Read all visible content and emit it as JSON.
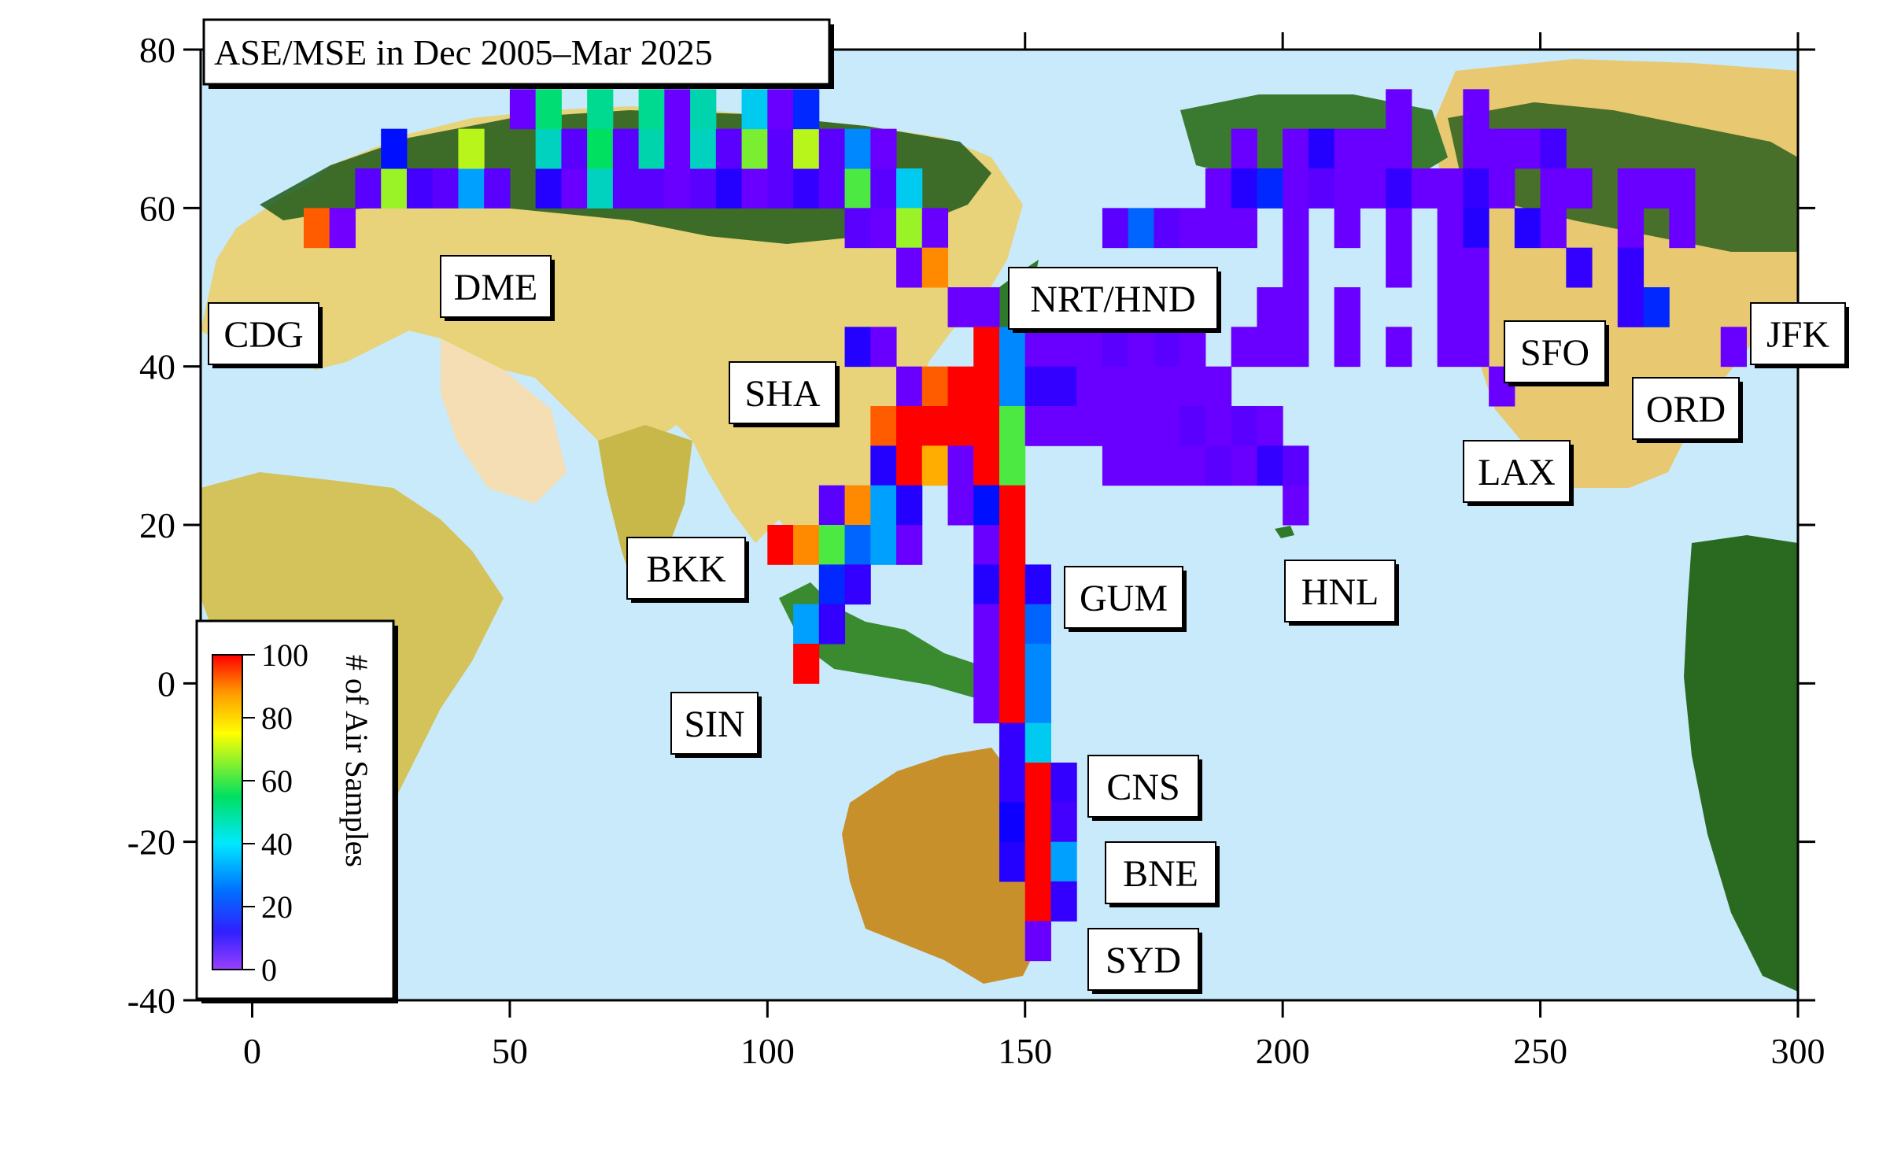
{
  "chart_data": {
    "type": "heatmap",
    "title": "ASE/MSE in Dec 2005–Mar 2025",
    "xlim": [
      -10,
      300
    ],
    "ylim": [
      -40,
      80
    ],
    "x_ticks": [
      0,
      50,
      100,
      150,
      200,
      250,
      300
    ],
    "y_ticks": [
      80,
      60,
      40,
      20,
      0,
      -20,
      -40
    ],
    "cell_size_deg": [
      5,
      5
    ],
    "colorbar": {
      "label": "# of Air Samples",
      "range": [
        0,
        100
      ],
      "ticks": [
        100,
        80,
        60,
        40,
        20,
        0
      ],
      "colormap": [
        "#8000ff",
        "#0000ff",
        "#00c8ff",
        "#00e060",
        "#ffff00",
        "#ff9900",
        "#ff0000"
      ]
    },
    "airports": [
      {
        "code": "CDG",
        "lon": 2.5,
        "lat": 49.0
      },
      {
        "code": "DME",
        "lon": 37.9,
        "lat": 55.4
      },
      {
        "code": "NRT/HND",
        "lon": 140.1,
        "lat": 35.8
      },
      {
        "code": "SHA",
        "lon": 121.3,
        "lat": 31.2
      },
      {
        "code": "BKK",
        "lon": 100.7,
        "lat": 13.7
      },
      {
        "code": "SIN",
        "lon": 103.9,
        "lat": 1.4
      },
      {
        "code": "GUM",
        "lon": 144.8,
        "lat": 13.5
      },
      {
        "code": "HNL",
        "lon": 202.1,
        "lat": 21.3
      },
      {
        "code": "CNS",
        "lon": 145.7,
        "lat": -16.9
      },
      {
        "code": "BNE",
        "lon": 153.1,
        "lat": -27.4
      },
      {
        "code": "SYD",
        "lon": 151.2,
        "lat": -33.9
      },
      {
        "code": "LAX",
        "lon": 241.6,
        "lat": 33.9
      },
      {
        "code": "SFO",
        "lon": 237.6,
        "lat": 37.6
      },
      {
        "code": "ORD",
        "lon": 272.1,
        "lat": 42.0
      },
      {
        "code": "JFK",
        "lon": 286.2,
        "lat": 40.6
      }
    ],
    "cells": [
      [
        10,
        55,
        90
      ],
      [
        15,
        55,
        2
      ],
      [
        20,
        60,
        5
      ],
      [
        25,
        60,
        60
      ],
      [
        30,
        60,
        8
      ],
      [
        35,
        60,
        5
      ],
      [
        40,
        60,
        30
      ],
      [
        45,
        60,
        5
      ],
      [
        55,
        60,
        12
      ],
      [
        60,
        60,
        3
      ],
      [
        65,
        60,
        40
      ],
      [
        70,
        60,
        5
      ],
      [
        75,
        60,
        5
      ],
      [
        80,
        60,
        3
      ],
      [
        85,
        60,
        5
      ],
      [
        90,
        60,
        12
      ],
      [
        95,
        60,
        3
      ],
      [
        100,
        60,
        5
      ],
      [
        105,
        60,
        10
      ],
      [
        110,
        60,
        5
      ],
      [
        115,
        60,
        55
      ],
      [
        120,
        60,
        5
      ],
      [
        125,
        60,
        35
      ],
      [
        25,
        65,
        18
      ],
      [
        40,
        65,
        62
      ],
      [
        55,
        65,
        40
      ],
      [
        60,
        65,
        5
      ],
      [
        65,
        65,
        50
      ],
      [
        70,
        65,
        5
      ],
      [
        75,
        65,
        42
      ],
      [
        80,
        65,
        3
      ],
      [
        85,
        65,
        40
      ],
      [
        90,
        65,
        5
      ],
      [
        95,
        65,
        58
      ],
      [
        100,
        65,
        5
      ],
      [
        105,
        65,
        62
      ],
      [
        110,
        65,
        5
      ],
      [
        115,
        65,
        28
      ],
      [
        120,
        65,
        3
      ],
      [
        50,
        70,
        3
      ],
      [
        55,
        70,
        48
      ],
      [
        65,
        70,
        45
      ],
      [
        75,
        70,
        45
      ],
      [
        80,
        70,
        3
      ],
      [
        85,
        70,
        42
      ],
      [
        95,
        70,
        35
      ],
      [
        100,
        70,
        3
      ],
      [
        105,
        70,
        20
      ],
      [
        115,
        55,
        5
      ],
      [
        120,
        55,
        3
      ],
      [
        125,
        55,
        60
      ],
      [
        130,
        55,
        3
      ],
      [
        125,
        50,
        3
      ],
      [
        130,
        50,
        85
      ],
      [
        135,
        45,
        3
      ],
      [
        140,
        45,
        3
      ],
      [
        115,
        40,
        12
      ],
      [
        120,
        40,
        3
      ],
      [
        140,
        40,
        100
      ],
      [
        145,
        40,
        28
      ],
      [
        150,
        40,
        3
      ],
      [
        155,
        40,
        3
      ],
      [
        160,
        40,
        3
      ],
      [
        165,
        40,
        5
      ],
      [
        170,
        40,
        3
      ],
      [
        175,
        40,
        5
      ],
      [
        180,
        40,
        3
      ],
      [
        125,
        35,
        3
      ],
      [
        130,
        35,
        90
      ],
      [
        135,
        35,
        100
      ],
      [
        140,
        35,
        100
      ],
      [
        145,
        35,
        28
      ],
      [
        150,
        35,
        10
      ],
      [
        155,
        35,
        10
      ],
      [
        160,
        35,
        3
      ],
      [
        165,
        35,
        3
      ],
      [
        170,
        35,
        3
      ],
      [
        175,
        35,
        3
      ],
      [
        180,
        35,
        3
      ],
      [
        185,
        35,
        3
      ],
      [
        120,
        30,
        90
      ],
      [
        125,
        30,
        100
      ],
      [
        130,
        30,
        100
      ],
      [
        135,
        30,
        100
      ],
      [
        140,
        30,
        100
      ],
      [
        145,
        30,
        55
      ],
      [
        150,
        30,
        3
      ],
      [
        155,
        30,
        3
      ],
      [
        160,
        30,
        3
      ],
      [
        165,
        30,
        3
      ],
      [
        170,
        30,
        3
      ],
      [
        175,
        30,
        3
      ],
      [
        180,
        30,
        5
      ],
      [
        185,
        30,
        3
      ],
      [
        190,
        30,
        5
      ],
      [
        195,
        30,
        3
      ],
      [
        120,
        25,
        12
      ],
      [
        125,
        25,
        100
      ],
      [
        130,
        25,
        80
      ],
      [
        135,
        25,
        3
      ],
      [
        140,
        25,
        100
      ],
      [
        145,
        25,
        55
      ],
      [
        165,
        25,
        3
      ],
      [
        170,
        25,
        3
      ],
      [
        175,
        25,
        3
      ],
      [
        180,
        25,
        3
      ],
      [
        185,
        25,
        5
      ],
      [
        190,
        25,
        3
      ],
      [
        195,
        25,
        10
      ],
      [
        200,
        25,
        5
      ],
      [
        110,
        20,
        5
      ],
      [
        115,
        20,
        85
      ],
      [
        120,
        20,
        30
      ],
      [
        125,
        20,
        12
      ],
      [
        135,
        20,
        3
      ],
      [
        140,
        20,
        18
      ],
      [
        145,
        20,
        100
      ],
      [
        200,
        20,
        3
      ],
      [
        100,
        15,
        100
      ],
      [
        105,
        15,
        85
      ],
      [
        110,
        15,
        55
      ],
      [
        115,
        15,
        25
      ],
      [
        120,
        15,
        30
      ],
      [
        125,
        15,
        3
      ],
      [
        140,
        15,
        3
      ],
      [
        145,
        15,
        100
      ],
      [
        110,
        10,
        20
      ],
      [
        115,
        10,
        10
      ],
      [
        140,
        10,
        12
      ],
      [
        145,
        10,
        100
      ],
      [
        150,
        10,
        12
      ],
      [
        105,
        5,
        30
      ],
      [
        110,
        5,
        10
      ],
      [
        140,
        5,
        3
      ],
      [
        145,
        5,
        100
      ],
      [
        150,
        5,
        25
      ],
      [
        105,
        0,
        100
      ],
      [
        140,
        0,
        3
      ],
      [
        145,
        0,
        100
      ],
      [
        150,
        0,
        28
      ],
      [
        140,
        -5,
        3
      ],
      [
        145,
        -5,
        100
      ],
      [
        150,
        -5,
        28
      ],
      [
        145,
        -10,
        10
      ],
      [
        150,
        -10,
        35
      ],
      [
        145,
        -15,
        10
      ],
      [
        150,
        -15,
        100
      ],
      [
        155,
        -15,
        10
      ],
      [
        145,
        -20,
        15
      ],
      [
        150,
        -20,
        100
      ],
      [
        155,
        -20,
        8
      ],
      [
        145,
        -25,
        12
      ],
      [
        150,
        -25,
        100
      ],
      [
        155,
        -25,
        30
      ],
      [
        150,
        -30,
        100
      ],
      [
        155,
        -30,
        10
      ],
      [
        150,
        -35,
        3
      ],
      [
        165,
        55,
        5
      ],
      [
        170,
        55,
        25
      ],
      [
        175,
        55,
        5
      ],
      [
        180,
        55,
        3
      ],
      [
        185,
        55,
        3
      ],
      [
        190,
        65,
        3
      ],
      [
        200,
        65,
        3
      ],
      [
        205,
        65,
        12
      ],
      [
        210,
        65,
        3
      ],
      [
        215,
        65,
        3
      ],
      [
        220,
        65,
        3
      ],
      [
        235,
        65,
        3
      ],
      [
        240,
        65,
        3
      ],
      [
        245,
        65,
        3
      ],
      [
        250,
        65,
        8
      ],
      [
        220,
        70,
        3
      ],
      [
        235,
        70,
        3
      ],
      [
        185,
        60,
        3
      ],
      [
        190,
        60,
        12
      ],
      [
        195,
        60,
        20
      ],
      [
        200,
        60,
        3
      ],
      [
        205,
        60,
        5
      ],
      [
        210,
        60,
        3
      ],
      [
        215,
        60,
        3
      ],
      [
        220,
        60,
        10
      ],
      [
        225,
        60,
        3
      ],
      [
        230,
        60,
        3
      ],
      [
        235,
        60,
        10
      ],
      [
        240,
        60,
        3
      ],
      [
        250,
        60,
        3
      ],
      [
        255,
        60,
        3
      ],
      [
        265,
        60,
        3
      ],
      [
        270,
        60,
        3
      ],
      [
        275,
        60,
        3
      ],
      [
        190,
        55,
        3
      ],
      [
        200,
        55,
        3
      ],
      [
        210,
        55,
        3
      ],
      [
        220,
        55,
        3
      ],
      [
        230,
        55,
        3
      ],
      [
        235,
        55,
        12
      ],
      [
        245,
        55,
        12
      ],
      [
        250,
        55,
        3
      ],
      [
        265,
        55,
        3
      ],
      [
        275,
        55,
        3
      ],
      [
        200,
        50,
        3
      ],
      [
        220,
        50,
        3
      ],
      [
        230,
        50,
        3
      ],
      [
        235,
        50,
        3
      ],
      [
        255,
        50,
        10
      ],
      [
        265,
        50,
        10
      ],
      [
        195,
        45,
        3
      ],
      [
        200,
        45,
        3
      ],
      [
        210,
        45,
        3
      ],
      [
        230,
        45,
        3
      ],
      [
        235,
        45,
        3
      ],
      [
        265,
        45,
        10
      ],
      [
        270,
        45,
        20
      ],
      [
        190,
        40,
        3
      ],
      [
        195,
        40,
        3
      ],
      [
        200,
        40,
        3
      ],
      [
        210,
        40,
        3
      ],
      [
        220,
        40,
        3
      ],
      [
        230,
        40,
        3
      ],
      [
        235,
        40,
        3
      ],
      [
        285,
        40,
        3
      ],
      [
        240,
        35,
        3
      ]
    ]
  }
}
